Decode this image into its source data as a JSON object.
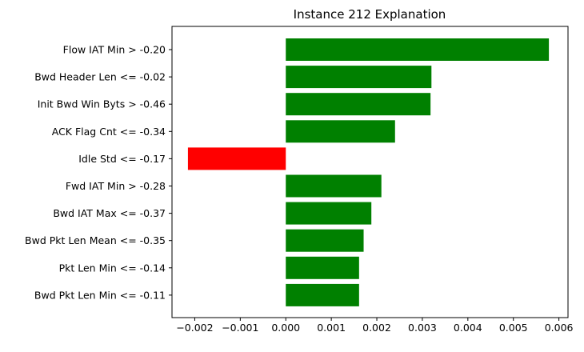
{
  "chart_data": {
    "type": "bar",
    "orientation": "horizontal",
    "title": "Instance 212 Explanation",
    "xlabel": "",
    "ylabel": "",
    "categories": [
      "Flow IAT Min > -0.20",
      "Bwd Header Len <= -0.02",
      "Init Bwd Win Byts > -0.46",
      "ACK Flag Cnt <= -0.34",
      "Idle Std <= -0.17",
      "Fwd IAT Min > -0.28",
      "Bwd IAT Max <= -0.37",
      "Bwd Pkt Len Mean <= -0.35",
      "Pkt Len Min <= -0.14",
      "Bwd Pkt Len Min <= -0.11"
    ],
    "values": [
      0.00578,
      0.0032,
      0.00318,
      0.0024,
      -0.00215,
      0.0021,
      0.00188,
      0.00171,
      0.00161,
      0.00161
    ],
    "xlim": [
      -0.0025,
      0.0062
    ],
    "xticks": [
      -0.002,
      -0.001,
      0.0,
      0.001,
      0.002,
      0.003,
      0.004,
      0.005,
      0.006
    ],
    "xtick_labels": [
      "−0.002",
      "−0.001",
      "0.000",
      "0.001",
      "0.002",
      "0.003",
      "0.004",
      "0.005",
      "0.006"
    ],
    "colors": {
      "positive": "#008000",
      "negative": "#ff0000"
    },
    "grid": false,
    "legend": "none"
  }
}
